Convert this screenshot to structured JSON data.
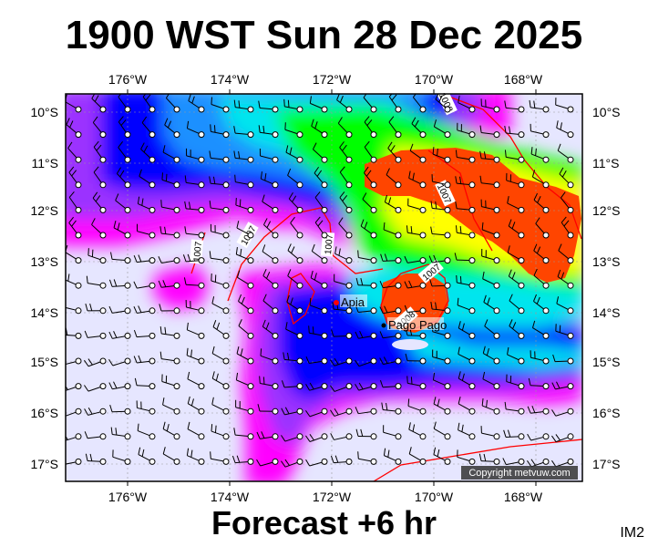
{
  "title": "1900 WST Sun 28 Dec 2025",
  "footer": "Forecast +6 hr",
  "image_code": "IM2",
  "copyright": "Copyright metvuw.com",
  "axes": {
    "lon_labels": [
      "176°W",
      "174°W",
      "172°W",
      "170°W",
      "168°W"
    ],
    "lat_labels": [
      "10°S",
      "11°S",
      "12°S",
      "13°S",
      "14°S",
      "15°S",
      "16°S",
      "17°S"
    ]
  },
  "places": [
    {
      "name": "Apia",
      "marker_color": "#ff0000"
    },
    {
      "name": "Pago Pago",
      "marker_color": "#000000"
    }
  ],
  "isobar_labels": [
    "1008",
    "1007",
    "1007",
    "1007",
    "1007",
    "1007",
    "1008"
  ],
  "colors": {
    "background": "#e6e6ff",
    "magenta": "#ff00ff",
    "purple": "#9b30ff",
    "blue": "#0000ff",
    "lightblue": "#1e90ff",
    "cyan": "#00e5ee",
    "green": "#00ff00",
    "yellow": "#ffff00",
    "orange": "#ff4500",
    "isobar": "#ff0000"
  }
}
